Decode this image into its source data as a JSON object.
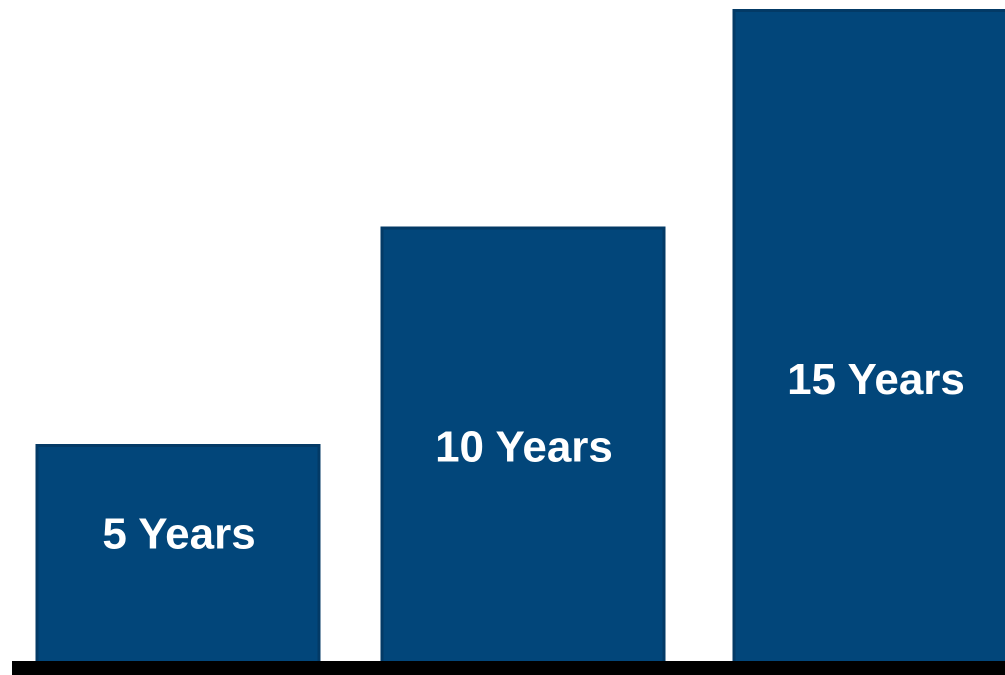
{
  "chart_data": {
    "type": "bar",
    "categories": [
      "5 Years",
      "10 Years",
      "15 Years"
    ],
    "values": [
      5,
      10,
      15
    ],
    "title": "",
    "xlabel": "",
    "ylabel": "",
    "grid": false,
    "legend": "none"
  },
  "colors": {
    "bar": "#02467A",
    "bar_edge": "#033A66",
    "baseline": "#000000",
    "label": "#FFFFFF"
  }
}
